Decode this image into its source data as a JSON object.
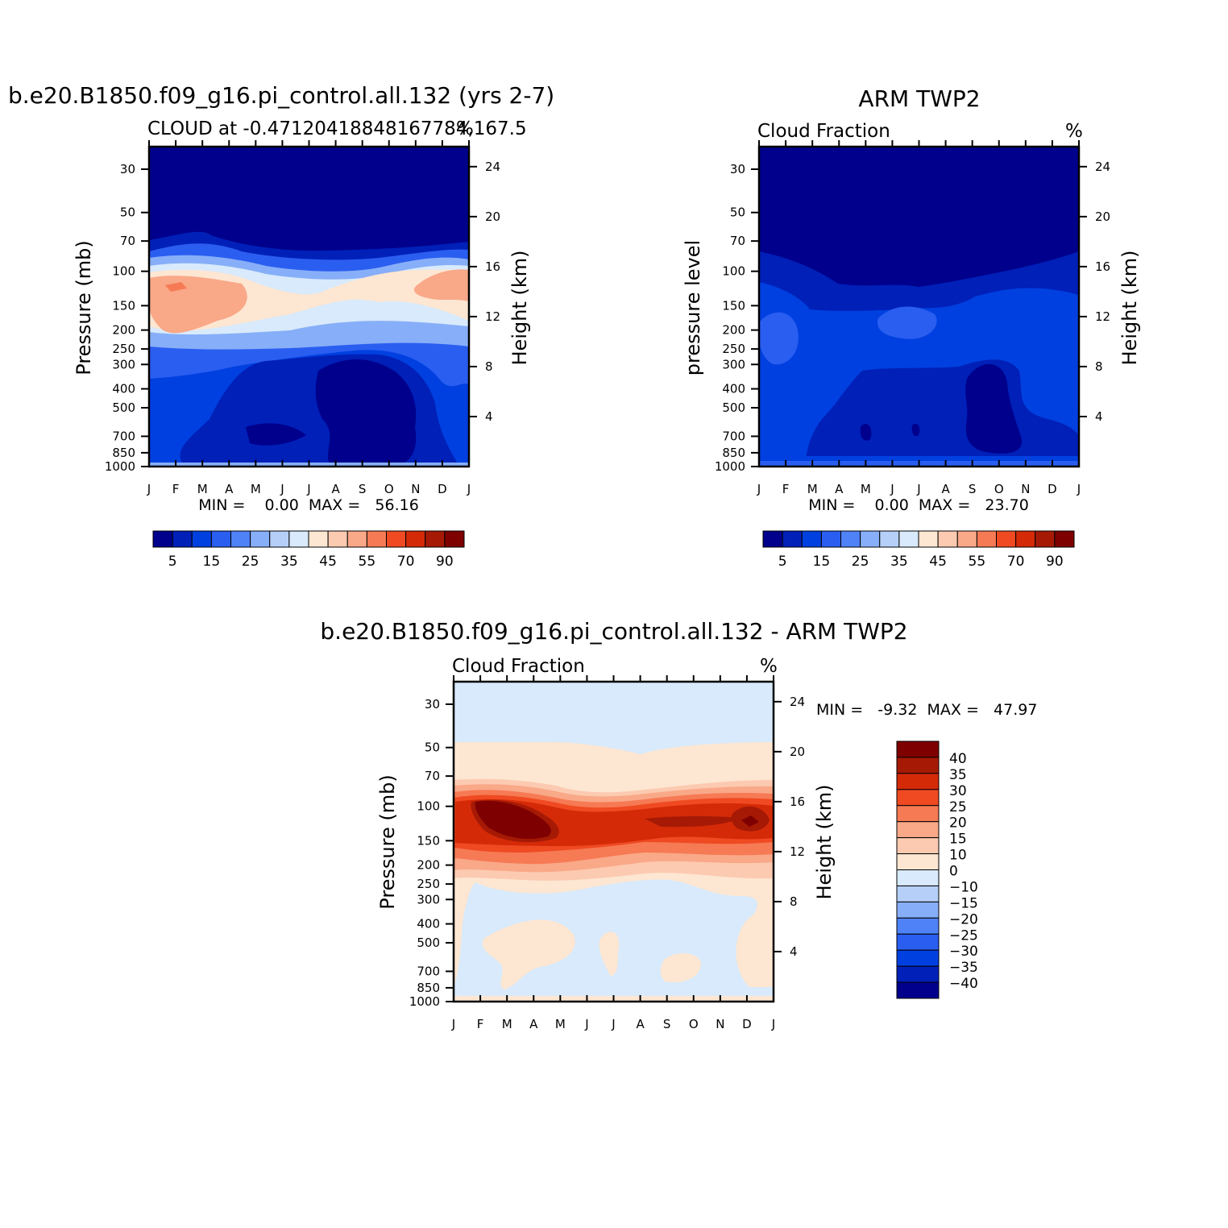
{
  "chart_data": [
    {
      "type": "heatmap",
      "title": "b.e20.B1850.f09_g16.pi_control.all.132 (yrs 2-7)",
      "subtitle_left": "CLOUD at -0.47120418848167784,167.5",
      "subtitle_right": "%",
      "ylabel": "Pressure (mb)",
      "ylabel_right": "Height (km)",
      "x_ticks": [
        "J",
        "F",
        "M",
        "A",
        "M",
        "J",
        "J",
        "A",
        "S",
        "O",
        "N",
        "D",
        "J"
      ],
      "y_ticks": [
        "30",
        "50",
        "70",
        "100",
        "150",
        "200",
        "250",
        "300",
        "400",
        "500",
        "700",
        "850",
        "1000"
      ],
      "y_ticks_right": [
        "24",
        "20",
        "16",
        "12",
        "8",
        "4"
      ],
      "stats": "MIN =    0.00  MAX =   56.16",
      "colorbar_labels": [
        "5",
        "15",
        "25",
        "35",
        "45",
        "55",
        "70",
        "90"
      ],
      "value_range": [
        0.0,
        56.16
      ]
    },
    {
      "type": "heatmap",
      "title": "ARM TWP2",
      "subtitle_left": "Cloud Fraction",
      "subtitle_right": "%",
      "ylabel": "pressure level",
      "ylabel_right": "Height (km)",
      "x_ticks": [
        "J",
        "F",
        "M",
        "A",
        "M",
        "J",
        "J",
        "A",
        "S",
        "O",
        "N",
        "D",
        "J"
      ],
      "y_ticks": [
        "30",
        "50",
        "70",
        "100",
        "150",
        "200",
        "250",
        "300",
        "400",
        "500",
        "700",
        "850",
        "1000"
      ],
      "y_ticks_right": [
        "24",
        "20",
        "16",
        "12",
        "8",
        "4"
      ],
      "stats": "MIN =    0.00  MAX =   23.70",
      "colorbar_labels": [
        "5",
        "15",
        "25",
        "35",
        "45",
        "55",
        "70",
        "90"
      ],
      "value_range": [
        0.0,
        23.7
      ]
    },
    {
      "type": "heatmap",
      "title": "b.e20.B1850.f09_g16.pi_control.all.132 - ARM TWP2",
      "subtitle_left": "Cloud Fraction",
      "subtitle_right": "%",
      "ylabel": "Pressure (mb)",
      "ylabel_right": "Height (km)",
      "x_ticks": [
        "J",
        "F",
        "M",
        "A",
        "M",
        "J",
        "J",
        "A",
        "S",
        "O",
        "N",
        "D",
        "J"
      ],
      "y_ticks": [
        "30",
        "50",
        "70",
        "100",
        "150",
        "200",
        "250",
        "300",
        "400",
        "500",
        "700",
        "850",
        "1000"
      ],
      "y_ticks_right": [
        "24",
        "20",
        "16",
        "12",
        "8",
        "4"
      ],
      "stats": "MIN =   -9.32  MAX =   47.97",
      "colorbar_labels": [
        "40",
        "35",
        "30",
        "25",
        "20",
        "15",
        "10",
        "0",
        "-10",
        "-15",
        "-20",
        "-25",
        "-30",
        "-35",
        "-40"
      ],
      "value_range": [
        -9.32,
        47.97
      ]
    }
  ],
  "colors": {
    "abs_scale": [
      "#00008c",
      "#0020b8",
      "#0040e0",
      "#2a5ef0",
      "#4f82f7",
      "#87aef8",
      "#b6cff8",
      "#d8eafb",
      "#fde6d2",
      "#fccab0",
      "#f9a888",
      "#f67a54",
      "#ef4a22",
      "#d52a08",
      "#a61a05",
      "#7f0000"
    ],
    "diff_scale": [
      "#7f0000",
      "#a61a05",
      "#d52a08",
      "#ef4a22",
      "#f67a54",
      "#f9a888",
      "#fccab0",
      "#fde6d2",
      "#d8eafb",
      "#b6cff8",
      "#87aef8",
      "#4f82f7",
      "#2a5ef0",
      "#0040e0",
      "#0020b8",
      "#00008c"
    ]
  }
}
